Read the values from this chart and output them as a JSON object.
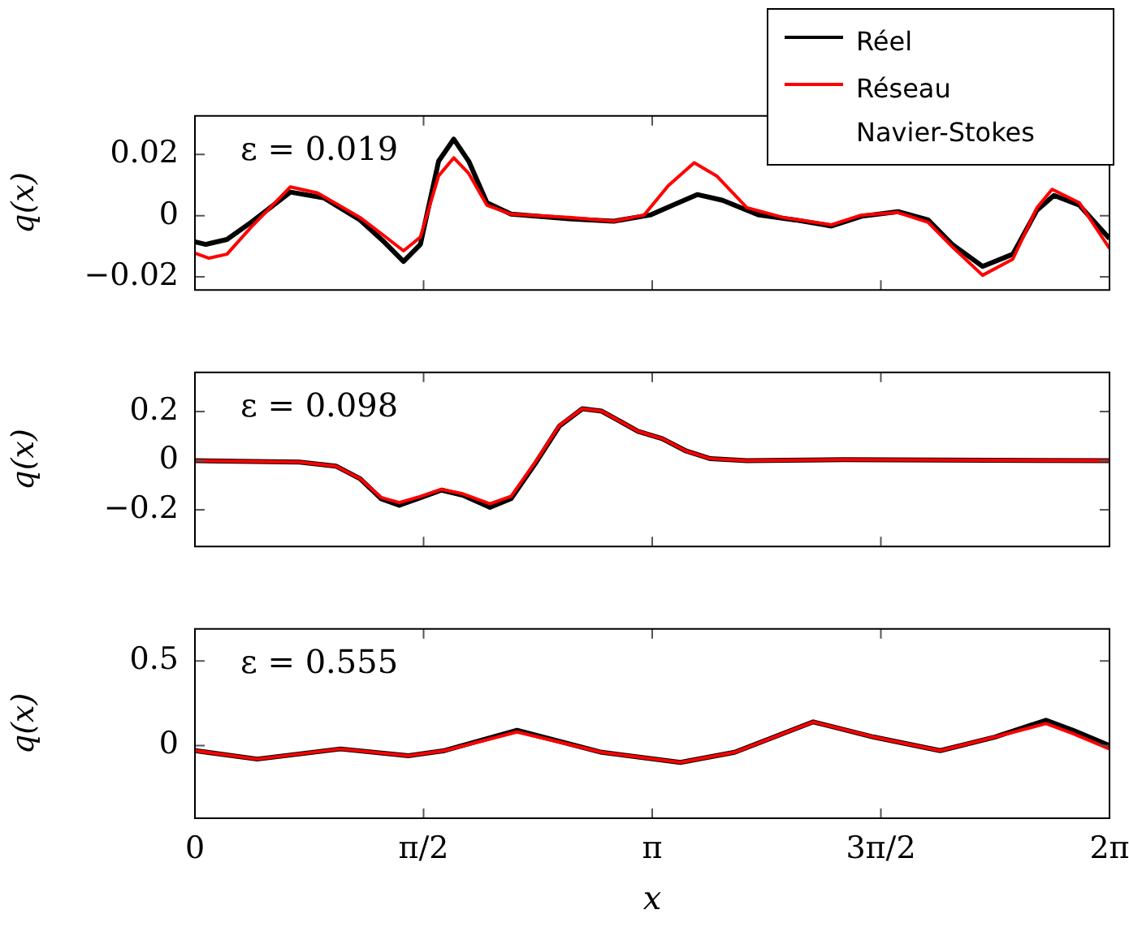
{
  "chart_data": [
    {
      "type": "line",
      "ylabel": "q(x)",
      "annotations": [
        "ε = 0.019"
      ],
      "legend": "top right",
      "tick_labels": "y",
      "xlim": [
        0,
        6.2832
      ],
      "xticks": [
        {
          "value": 0,
          "label": null
        },
        {
          "value": 1.5708,
          "label": null
        },
        {
          "value": 3.1416,
          "label": null
        },
        {
          "value": 4.7124,
          "label": null
        },
        {
          "value": 6.2832,
          "label": null
        }
      ],
      "ylim": [
        -0.0243,
        0.0326
      ],
      "yticks": [
        {
          "value": -0.02,
          "label": "−0.02"
        },
        0,
        0.02
      ],
      "series": [
        {
          "name": "Réel",
          "color": "#000000",
          "x": [
            0,
            0.075,
            0.22,
            0.386,
            0.656,
            0.885,
            1.134,
            1.3,
            1.433,
            1.549,
            1.674,
            1.778,
            1.881,
            2.006,
            2.172,
            2.587,
            2.878,
            3.127,
            3.451,
            3.625,
            3.875,
            4.124,
            4.373,
            4.581,
            4.83,
            5.037,
            5.203,
            5.411,
            5.619,
            5.785,
            5.902,
            6.076,
            6.283
          ],
          "values": [
            -0.0086,
            -0.0094,
            -0.0078,
            -0.0022,
            0.0077,
            0.0058,
            -0.0014,
            -0.0086,
            -0.015,
            -0.0094,
            0.0178,
            0.025,
            0.0178,
            0.0042,
            0.0005,
            -0.0011,
            -0.0018,
            0.0002,
            0.0069,
            0.005,
            0.0002,
            -0.0014,
            -0.0034,
            -0.0002,
            0.0013,
            -0.0014,
            -0.0094,
            -0.0166,
            -0.0126,
            0.0018,
            0.0066,
            0.0034,
            -0.0075
          ]
        },
        {
          "name": "Réseau Navier-Stokes",
          "color": "#ff0000",
          "x": [
            0,
            0.096,
            0.22,
            0.386,
            0.656,
            0.843,
            1.134,
            1.3,
            1.433,
            1.549,
            1.674,
            1.778,
            1.881,
            2.006,
            2.172,
            2.587,
            2.878,
            3.086,
            3.252,
            3.43,
            3.584,
            3.792,
            4.041,
            4.373,
            4.581,
            4.83,
            5.037,
            5.203,
            5.411,
            5.619,
            5.785,
            5.889,
            6.076,
            6.283
          ],
          "values": [
            -0.0123,
            -0.0139,
            -0.0126,
            -0.0038,
            0.0094,
            0.0074,
            -0.0006,
            -0.0066,
            -0.0115,
            -0.007,
            0.013,
            0.0189,
            0.0138,
            0.0034,
            0.0005,
            -0.0006,
            -0.0018,
            0.0002,
            0.0098,
            0.0173,
            0.013,
            0.0026,
            -0.0006,
            -0.003,
            0.0002,
            0.001,
            -0.0022,
            -0.0102,
            -0.0195,
            -0.0142,
            0.0026,
            0.0086,
            0.0042,
            -0.0107
          ]
        }
      ]
    },
    {
      "type": "line",
      "ylabel": "q(x)",
      "annotations": [
        "ε = 0.098"
      ],
      "tick_labels": "y",
      "xlim": [
        0,
        6.2832
      ],
      "xticks": [
        {
          "value": 0,
          "label": null
        },
        {
          "value": 1.5708,
          "label": null
        },
        {
          "value": 3.1416,
          "label": null
        },
        {
          "value": 4.7124,
          "label": null
        },
        {
          "value": 6.2832,
          "label": null
        }
      ],
      "ylim": [
        -0.35,
        0.36
      ],
      "yticks": [
        {
          "value": -0.2,
          "label": "−0.2"
        },
        0,
        0.2
      ],
      "series": [
        {
          "color": "#000000",
          "x": [
            0,
            0.718,
            0.968,
            1.134,
            1.279,
            1.404,
            1.549,
            1.694,
            1.84,
            2.027,
            2.172,
            2.338,
            2.504,
            2.662,
            2.795,
            3.044,
            3.21,
            3.376,
            3.542,
            3.792,
            4.456,
            6.283
          ],
          "values": [
            0,
            -0.006,
            -0.022,
            -0.073,
            -0.155,
            -0.182,
            -0.151,
            -0.12,
            -0.141,
            -0.19,
            -0.155,
            -0.012,
            0.141,
            0.212,
            0.202,
            0.12,
            0.09,
            0.039,
            0.008,
            0,
            0.004,
            0
          ]
        },
        {
          "color": "#ff0000",
          "x": [
            0,
            0.718,
            0.968,
            1.134,
            1.279,
            1.404,
            1.549,
            1.694,
            1.84,
            2.027,
            2.172,
            2.338,
            2.504,
            2.662,
            2.795,
            3.044,
            3.21,
            3.376,
            3.542,
            3.792,
            4.456,
            6.283
          ],
          "values": [
            0,
            -0.006,
            -0.022,
            -0.073,
            -0.15,
            -0.171,
            -0.146,
            -0.117,
            -0.135,
            -0.176,
            -0.145,
            -0.006,
            0.144,
            0.212,
            0.202,
            0.12,
            0.09,
            0.039,
            0.008,
            0,
            0.004,
            0
          ]
        }
      ]
    },
    {
      "type": "line",
      "xlabel": "x",
      "ylabel": "q(x)",
      "annotations": [
        "ε = 0.555"
      ],
      "xlim": [
        0,
        6.2832
      ],
      "xticks": [
        {
          "value": 0,
          "label": "0"
        },
        {
          "value": 1.5708,
          "label": "π/2"
        },
        {
          "value": 3.1416,
          "label": "π"
        },
        {
          "value": 4.7124,
          "label": "3π/2"
        },
        {
          "value": 6.2832,
          "label": "2π"
        }
      ],
      "ylim": [
        -0.43,
        0.69
      ],
      "yticks": [
        0,
        0.5
      ],
      "series": [
        {
          "color": "#000000",
          "x": [
            0,
            0.428,
            1.0,
            1.466,
            1.715,
            2.213,
            2.795,
            3.335,
            3.708,
            4.248,
            4.664,
            5.12,
            5.494,
            5.847,
            6.034,
            6.283
          ],
          "values": [
            -0.03,
            -0.08,
            -0.02,
            -0.06,
            -0.03,
            0.09,
            -0.04,
            -0.1,
            -0.04,
            0.14,
            0.05,
            -0.03,
            0.05,
            0.15,
            0.09,
            0
          ]
        },
        {
          "color": "#ff0000",
          "x": [
            0,
            0.428,
            1.0,
            1.466,
            1.715,
            2.213,
            2.795,
            3.335,
            3.708,
            4.248,
            4.664,
            5.12,
            5.494,
            5.847,
            6.034,
            6.283
          ],
          "values": [
            -0.03,
            -0.08,
            -0.02,
            -0.06,
            -0.03,
            0.08,
            -0.04,
            -0.1,
            -0.04,
            0.14,
            0.05,
            -0.03,
            0.05,
            0.13,
            0.07,
            -0.02
          ]
        }
      ]
    }
  ]
}
